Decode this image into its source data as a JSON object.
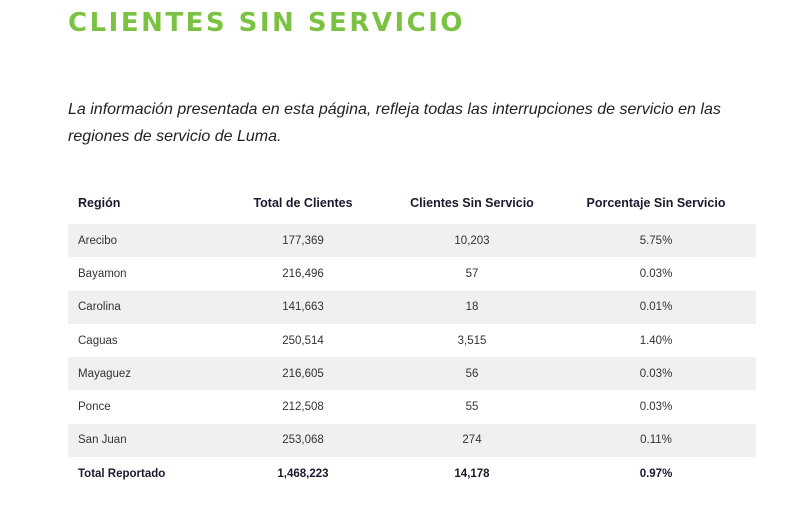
{
  "header": {
    "title": "CLIENTES SIN SERVICIO"
  },
  "intro": {
    "text": "La información presentada en esta página, refleja todas las interrupciones de servicio en las regiones de servicio de Luma."
  },
  "table": {
    "columns": [
      "Región",
      "Total de Clientes",
      "Clientes Sin Servicio",
      "Porcentaje Sin Servicio"
    ],
    "rows": [
      [
        "Arecibo",
        "177,369",
        "10,203",
        "5.75%"
      ],
      [
        "Bayamon",
        "216,496",
        "57",
        "0.03%"
      ],
      [
        "Carolina",
        "141,663",
        "18",
        "0.01%"
      ],
      [
        "Caguas",
        "250,514",
        "3,515",
        "1.40%"
      ],
      [
        "Mayaguez",
        "216,605",
        "56",
        "0.03%"
      ],
      [
        "Ponce",
        "212,508",
        "55",
        "0.03%"
      ],
      [
        "San Juan",
        "253,068",
        "274",
        "0.11%"
      ]
    ],
    "total": [
      "Total Reportado",
      "1,468,223",
      "14,178",
      "0.97%"
    ]
  },
  "colors": {
    "title": "#7cc242",
    "row_shade": "#f0f0f0"
  }
}
